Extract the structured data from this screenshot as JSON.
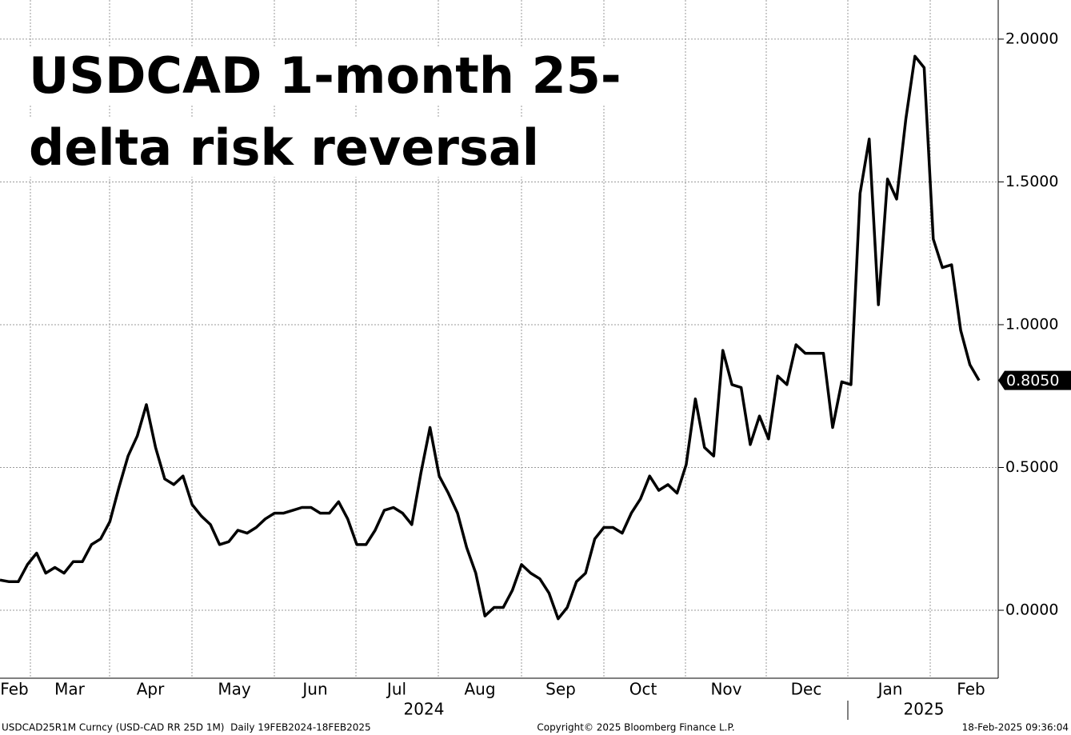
{
  "chart_data": {
    "type": "line",
    "title": "USDCAD 1-month 25-delta risk reversal",
    "x_labels": [
      "Feb",
      "Mar",
      "Apr",
      "May",
      "Jun",
      "Jul",
      "Aug",
      "Sep",
      "Oct",
      "Nov",
      "Dec",
      "Jan",
      "Feb"
    ],
    "years": [
      "2024",
      "2025"
    ],
    "series": [
      {
        "name": "USDCAD25R1M Curncy",
        "color": "#000000",
        "values": [
          0.106,
          0.1,
          0.1,
          0.16,
          0.2,
          0.13,
          0.15,
          0.13,
          0.17,
          0.17,
          0.23,
          0.25,
          0.31,
          0.43,
          0.54,
          0.61,
          0.72,
          0.57,
          0.46,
          0.44,
          0.47,
          0.37,
          0.33,
          0.3,
          0.23,
          0.24,
          0.28,
          0.27,
          0.29,
          0.32,
          0.34,
          0.34,
          0.35,
          0.36,
          0.36,
          0.34,
          0.34,
          0.38,
          0.32,
          0.23,
          0.23,
          0.28,
          0.35,
          0.36,
          0.34,
          0.3,
          0.48,
          0.64,
          0.47,
          0.41,
          0.34,
          0.22,
          0.13,
          -0.02,
          0.01,
          0.01,
          0.07,
          0.16,
          0.13,
          0.11,
          0.06,
          -0.03,
          0.01,
          0.1,
          0.13,
          0.25,
          0.29,
          0.29,
          0.27,
          0.34,
          0.39,
          0.47,
          0.42,
          0.44,
          0.41,
          0.51,
          0.74,
          0.57,
          0.54,
          0.91,
          0.79,
          0.78,
          0.58,
          0.68,
          0.6,
          0.82,
          0.79,
          0.93,
          0.9,
          0.9,
          0.9,
          0.64,
          0.8,
          0.79,
          1.46,
          1.65,
          1.07,
          1.51,
          1.44,
          1.72,
          1.94,
          1.9,
          1.3,
          1.2,
          1.21,
          0.98,
          0.86,
          0.805
        ]
      }
    ],
    "last_label": "0.8050",
    "ylim": [
      -0.238,
      2.137
    ],
    "yticks": [
      {
        "value": 0,
        "label": "0.0000"
      },
      {
        "value": 0.5,
        "label": "0.5000"
      },
      {
        "value": 1,
        "label": "1.0000"
      },
      {
        "value": 1.5,
        "label": "1.5000"
      },
      {
        "value": 2,
        "label": "2.0000"
      }
    ],
    "grid": true,
    "footer": {
      "left": "USDCAD25R1M Curncy (USD-CAD RR 25D 1M)  Daily 19FEB2024-18FEB2025",
      "center": "Copyright© 2025 Bloomberg Finance L.P.",
      "right": "18-Feb-2025 09:36:04"
    }
  }
}
